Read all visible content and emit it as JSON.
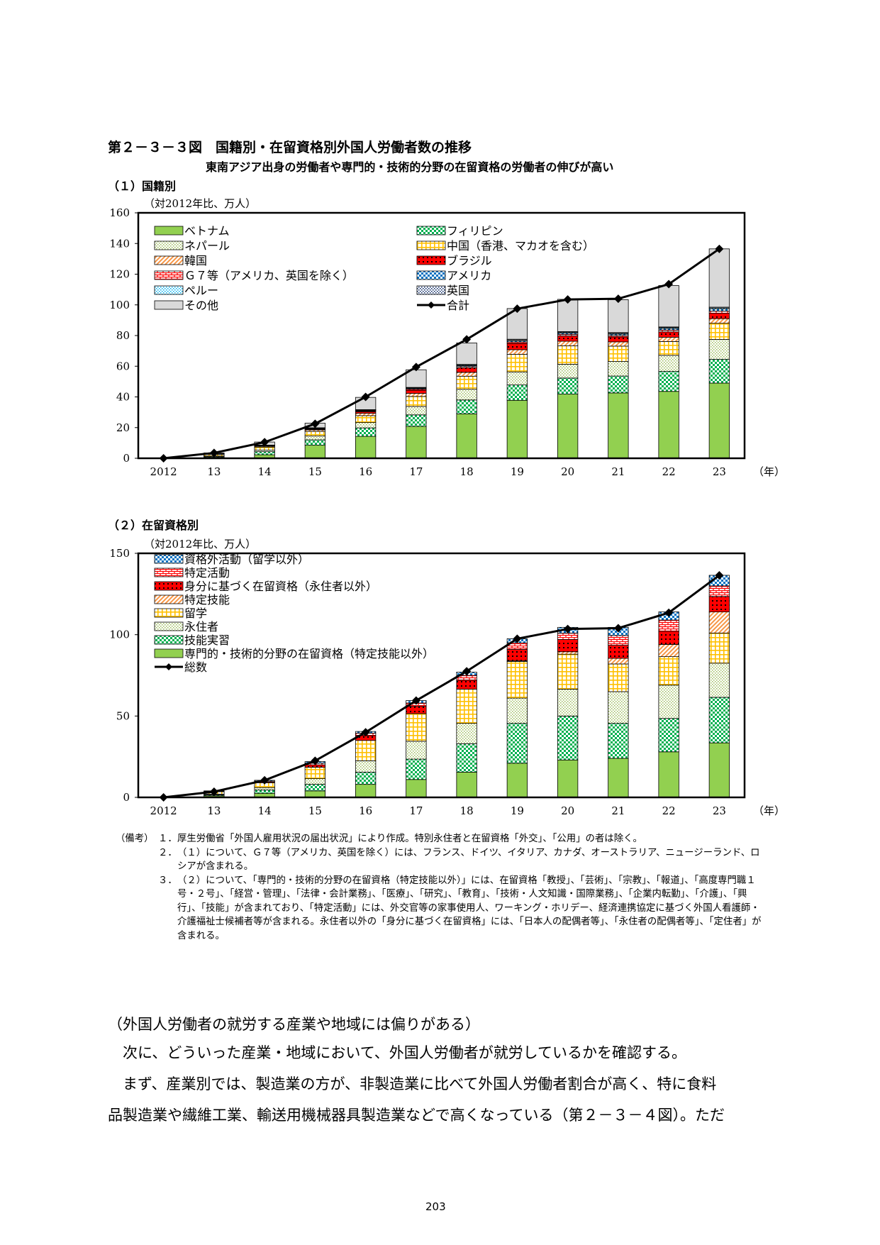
{
  "figure": {
    "title": "第２－３－３図　国籍別・在留資格別外国人労働者数の推移",
    "subtitle": "東南アジア出身の労働者や専門的・技術的分野の在留資格の労働者の伸びが高い"
  },
  "section1": {
    "title": "（１）国籍別"
  },
  "section2": {
    "title": "（２）在留資格別"
  },
  "chart_data": [
    {
      "type": "bar",
      "stacked": true,
      "unit_label": "（対2012年比、万人）",
      "x_unit_label": "（年）",
      "categories": [
        "2012",
        "13",
        "14",
        "15",
        "16",
        "17",
        "18",
        "19",
        "20",
        "21",
        "22",
        "23"
      ],
      "ylim": [
        0,
        160
      ],
      "yticks": [
        0,
        20,
        40,
        60,
        80,
        100,
        120,
        140,
        160
      ],
      "legend": "top-left, two columns",
      "series": [
        {
          "name": "ベトナム",
          "color": "#92d050",
          "pattern": "solid",
          "values": [
            0,
            0.5,
            2.3,
            8.5,
            14.3,
            20.8,
            29.0,
            37.8,
            41.8,
            42.6,
            43.6,
            49.0
          ]
        },
        {
          "name": "フィリピン",
          "color": "#00b050",
          "pattern": "checker",
          "values": [
            0,
            0.5,
            2.0,
            3.5,
            5.5,
            7.5,
            9.0,
            10.0,
            10.5,
            11.0,
            13.0,
            15.5
          ]
        },
        {
          "name": "ネパール",
          "color": "#9bbb59",
          "pattern": "dots",
          "values": [
            0,
            0.5,
            1.0,
            2.5,
            3.5,
            5.5,
            7.0,
            8.5,
            9.0,
            9.5,
            10.5,
            13.0
          ]
        },
        {
          "name": "中国（香港、マカオを含む）",
          "color": "#ffc000",
          "pattern": "grid",
          "values": [
            0,
            1.0,
            2.0,
            3.0,
            4.5,
            6.5,
            8.5,
            11.5,
            12.0,
            10.0,
            9.0,
            10.5
          ]
        },
        {
          "name": "韓国",
          "color": "#f79646",
          "pattern": "diagonal",
          "values": [
            0,
            0.2,
            0.5,
            1.0,
            1.5,
            2.0,
            2.5,
            3.0,
            3.0,
            2.8,
            2.8,
            3.0
          ]
        },
        {
          "name": "ブラジル",
          "color": "#ff0000",
          "pattern": "diamond",
          "values": [
            0,
            0,
            0.2,
            0.4,
            1.0,
            2.0,
            3.0,
            4.0,
            3.5,
            3.2,
            3.5,
            3.5
          ]
        },
        {
          "name": "Ｇ７等（アメリカ、英国を除く）",
          "color": "#ff0000",
          "pattern": "brick",
          "values": [
            0,
            0.1,
            0.2,
            0.3,
            0.5,
            0.7,
            0.8,
            1.0,
            1.0,
            1.0,
            1.2,
            1.5
          ]
        },
        {
          "name": "アメリカ",
          "color": "#0070c0",
          "pattern": "checker",
          "values": [
            0,
            0.1,
            0.2,
            0.3,
            0.4,
            0.5,
            0.6,
            0.8,
            0.8,
            0.8,
            1.0,
            1.3
          ]
        },
        {
          "name": "ペルー",
          "color": "#00b0f0",
          "pattern": "dots",
          "values": [
            0,
            0,
            0.1,
            0.2,
            0.3,
            0.4,
            0.5,
            0.6,
            0.6,
            0.6,
            0.6,
            0.7
          ]
        },
        {
          "name": "英国",
          "color": "#002060",
          "pattern": "dots",
          "values": [
            0,
            0.1,
            0.1,
            0.2,
            0.2,
            0.3,
            0.3,
            0.4,
            0.4,
            0.4,
            0.4,
            0.5
          ]
        },
        {
          "name": "その他",
          "color": "#d9d9d9",
          "pattern": "solid",
          "values": [
            0,
            0.5,
            2.0,
            3.0,
            8.0,
            11.5,
            14.0,
            20.0,
            21.0,
            21.5,
            27.0,
            38.0
          ]
        }
      ],
      "total": {
        "name": "合計",
        "values": [
          0,
          3.5,
          10.5,
          22.5,
          40.0,
          59.5,
          77.5,
          97.5,
          103.5,
          104.0,
          113.5,
          136.5
        ]
      }
    },
    {
      "type": "bar",
      "stacked": true,
      "unit_label": "（対2012年比、万人）",
      "x_unit_label": "（年）",
      "categories": [
        "2012",
        "13",
        "14",
        "15",
        "16",
        "17",
        "18",
        "19",
        "20",
        "21",
        "22",
        "23"
      ],
      "ylim": [
        0,
        150
      ],
      "yticks": [
        0,
        50,
        100,
        150
      ],
      "legend": "top-left, one column",
      "series": [
        {
          "name": "専門的・技術的分野の在留資格（特定技能以外）",
          "color": "#92d050",
          "pattern": "solid",
          "values": [
            0,
            1.0,
            2.5,
            4.0,
            8.0,
            11.0,
            15.5,
            21.0,
            23.0,
            24.0,
            28.0,
            33.5
          ]
        },
        {
          "name": "技能実習",
          "color": "#00b050",
          "pattern": "checker",
          "values": [
            0,
            0.5,
            2.0,
            4.0,
            7.5,
            12.5,
            17.5,
            24.5,
            27.0,
            21.5,
            20.5,
            28.0
          ]
        },
        {
          "name": "永住者",
          "color": "#9bbb59",
          "pattern": "dots",
          "values": [
            0,
            0.5,
            1.5,
            3.5,
            7.0,
            11.0,
            12.5,
            15.5,
            16.5,
            19.5,
            20.5,
            21.0
          ]
        },
        {
          "name": "留学",
          "color": "#ffc000",
          "pattern": "grid",
          "values": [
            0,
            1.5,
            3.0,
            7.0,
            12.5,
            17.0,
            21.0,
            22.5,
            21.5,
            17.0,
            17.5,
            18.5
          ]
        },
        {
          "name": "特定技能",
          "color": "#f79646",
          "pattern": "diagonal",
          "values": [
            0,
            0,
            0,
            0,
            0,
            0,
            0,
            0.5,
            1.5,
            3.5,
            7.5,
            13.0
          ]
        },
        {
          "name": "身分に基づく在留資格（永住者以外）",
          "color": "#ff0000",
          "pattern": "diamond",
          "values": [
            0,
            0,
            0.5,
            1.5,
            3.0,
            4.5,
            5.5,
            7.0,
            7.5,
            8.0,
            8.0,
            9.5
          ]
        },
        {
          "name": "特定活動",
          "color": "#ff0000",
          "pattern": "brick",
          "values": [
            0,
            0.2,
            0.5,
            1.0,
            1.5,
            2.0,
            3.0,
            4.0,
            4.0,
            6.0,
            7.0,
            6.5
          ]
        },
        {
          "name": "資格外活動（留学以外）",
          "color": "#0070c0",
          "pattern": "checker",
          "values": [
            0,
            0.3,
            0.5,
            1.0,
            1.0,
            1.5,
            2.0,
            2.5,
            3.5,
            5.0,
            5.0,
            6.5
          ]
        }
      ],
      "total": {
        "name": "総数",
        "values": [
          0,
          3.5,
          10.5,
          22.5,
          40.0,
          59.5,
          77.5,
          97.5,
          103.5,
          104.0,
          113.5,
          136.5
        ]
      }
    }
  ],
  "notes": {
    "label": "（備考）",
    "items": [
      {
        "num": "１．",
        "text": "厚生労働省「外国人雇用状況の届出状況」により作成。特別永住者と在留資格「外交」、「公用」の者は除く。"
      },
      {
        "num": "２．",
        "text": "（１）について、Ｇ７等（アメリカ、英国を除く）には、フランス、ドイツ、イタリア、カナダ、オーストラリア、ニュージーランド、ロシアが含まれる。"
      },
      {
        "num": "３．",
        "text": "（２）について、「専門的・技術的分野の在留資格（特定技能以外）」には、在留資格「教授」、「芸術」、「宗教」、「報道」、「高度専門職１号・２号」、「経営・管理」、「法律・会計業務」、「医療」、「研究」、「教育」、「技術・人文知識・国際業務」、「企業内転勤」、「介護」、「興行」、「技能」が含まれており、「特定活動」には、外交官等の家事使用人、ワーキング・ホリデー、経済連携協定に基づく外国人看護師・介護福祉士候補者等が含まれる。永住者以外の「身分に基づく在留資格」には、「日本人の配偶者等」、「永住者の配偶者等」、「定住者」が含まれる。"
      }
    ]
  },
  "text": {
    "heading": "（外国人労働者の就労する産業や地域には偏りがある）",
    "para1": "　次に、どういった産業・地域において、外国人労働者が就労しているかを確認する。",
    "para2": "　まず、産業別では、製造業の方が、非製造業に比べて外国人労働者割合が高く、特に食料",
    "para3": "品製造業や繊維工業、輸送用機械器具製造業などで高くなっている（第２－３－４図）。ただ"
  },
  "page_number": "203"
}
